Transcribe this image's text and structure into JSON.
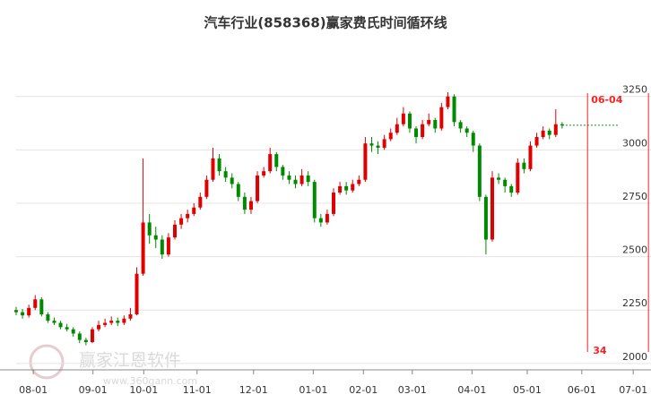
{
  "chart_data": {
    "type": "candlestick",
    "title": "汽车行业(858368)赢家费氏时间循环线",
    "watermark": "赢家江恩软件",
    "watermark_url": "www.360gann.com",
    "xlim": [
      0,
      100
    ],
    "ylim": [
      1970,
      3450
    ],
    "yticks": [
      2000,
      2250,
      2500,
      2750,
      3000,
      3250
    ],
    "xticks": [
      {
        "value": 2.7,
        "label": "08-01"
      },
      {
        "value": 12.1,
        "label": "09-01"
      },
      {
        "value": 20.1,
        "label": "10-01"
      },
      {
        "value": 28.5,
        "label": "11-01"
      },
      {
        "value": 37.4,
        "label": "12-01"
      },
      {
        "value": 46.8,
        "label": "01-01"
      },
      {
        "value": 54.7,
        "label": "02-01"
      },
      {
        "value": 62.4,
        "label": "03-01"
      },
      {
        "value": 71.8,
        "label": "04-01"
      },
      {
        "value": 80.5,
        "label": "05-01"
      },
      {
        "value": 89.1,
        "label": "06-01"
      },
      {
        "value": 97.2,
        "label": "07-01"
      }
    ],
    "grid": true,
    "up_color": "#e00000",
    "down_color": "#008a00",
    "cycle_color": "#ff2020",
    "cycle_lines": [
      90,
      99.6
    ],
    "cycle_date": "06-04",
    "cycle_count": "34",
    "x": [
      0,
      1,
      2,
      3,
      4,
      5,
      6,
      7,
      8,
      9,
      10,
      11,
      12,
      13,
      14,
      15,
      16,
      17,
      18,
      19,
      20,
      21,
      22,
      23,
      24,
      25,
      26,
      27,
      28,
      29,
      30,
      31,
      32,
      33,
      34,
      35,
      36,
      37,
      38,
      39,
      40,
      41,
      42,
      43,
      44,
      45,
      46,
      47,
      48,
      49,
      50,
      51,
      52,
      53,
      54,
      55,
      56,
      57,
      58,
      59,
      60,
      61,
      62,
      63,
      64,
      65,
      66,
      67,
      68,
      69,
      70,
      71,
      72,
      73,
      74,
      75,
      76,
      77,
      78,
      79,
      80,
      81,
      82,
      83,
      84,
      85,
      86
    ],
    "open": [
      2250,
      2240,
      2225,
      2260,
      2300,
      2230,
      2200,
      2190,
      2170,
      2160,
      2140,
      2110,
      2100,
      2160,
      2180,
      2190,
      2200,
      2190,
      2210,
      2230,
      2420,
      2660,
      2600,
      2580,
      2510,
      2590,
      2650,
      2680,
      2700,
      2730,
      2780,
      2860,
      2960,
      2900,
      2870,
      2840,
      2780,
      2720,
      2760,
      2880,
      2900,
      2980,
      2920,
      2880,
      2860,
      2840,
      2880,
      2850,
      2680,
      2660,
      2700,
      2800,
      2830,
      2810,
      2840,
      2860,
      3030,
      3020,
      3010,
      3050,
      3080,
      3120,
      3170,
      3100,
      3060,
      3120,
      3140,
      3100,
      3200,
      3250,
      3130,
      3100,
      3080,
      3020,
      2780,
      2580,
      2870,
      2860,
      2830,
      2800,
      2940,
      2910,
      3020,
      3060,
      3090,
      3070,
      3120
    ],
    "high": [
      2265,
      2255,
      2275,
      2320,
      2310,
      2240,
      2215,
      2200,
      2185,
      2170,
      2150,
      2120,
      2170,
      2200,
      2210,
      2220,
      2215,
      2225,
      2260,
      2450,
      2960,
      2700,
      2640,
      2600,
      2610,
      2670,
      2700,
      2720,
      2750,
      2800,
      2880,
      3010,
      2980,
      2920,
      2890,
      2850,
      2800,
      2780,
      2900,
      2920,
      3010,
      2990,
      2930,
      2900,
      2880,
      2910,
      2900,
      2860,
      2700,
      2720,
      2820,
      2850,
      2850,
      2860,
      2880,
      3060,
      3060,
      3040,
      3070,
      3100,
      3150,
      3200,
      3180,
      3110,
      3140,
      3170,
      3150,
      3220,
      3270,
      3260,
      3140,
      3110,
      3090,
      3030,
      2790,
      2900,
      2890,
      2870,
      2840,
      2960,
      2960,
      3040,
      3080,
      3110,
      3100,
      3190,
      3130
    ],
    "low": [
      2225,
      2210,
      2215,
      2250,
      2220,
      2190,
      2180,
      2160,
      2150,
      2125,
      2095,
      2085,
      2095,
      2150,
      2170,
      2180,
      2175,
      2180,
      2200,
      2225,
      2410,
      2560,
      2540,
      2490,
      2500,
      2580,
      2630,
      2660,
      2690,
      2720,
      2770,
      2850,
      2880,
      2850,
      2820,
      2760,
      2700,
      2700,
      2750,
      2870,
      2890,
      2900,
      2860,
      2840,
      2820,
      2830,
      2830,
      2660,
      2640,
      2650,
      2690,
      2790,
      2790,
      2800,
      2830,
      2850,
      2990,
      2980,
      3000,
      3040,
      3070,
      3110,
      3080,
      3030,
      3050,
      3110,
      3080,
      3090,
      3190,
      3110,
      3080,
      3060,
      2990,
      2760,
      2510,
      2570,
      2840,
      2800,
      2780,
      2790,
      2890,
      2900,
      3010,
      3050,
      3050,
      3060,
      3100
    ],
    "close": [
      2240,
      2225,
      2260,
      2300,
      2230,
      2200,
      2190,
      2170,
      2160,
      2140,
      2110,
      2100,
      2160,
      2180,
      2190,
      2200,
      2190,
      2210,
      2230,
      2420,
      2660,
      2600,
      2580,
      2510,
      2590,
      2650,
      2680,
      2700,
      2730,
      2780,
      2860,
      2960,
      2900,
      2870,
      2840,
      2780,
      2720,
      2760,
      2880,
      2900,
      2980,
      2920,
      2880,
      2860,
      2840,
      2880,
      2850,
      2680,
      2660,
      2700,
      2800,
      2830,
      2810,
      2840,
      2860,
      3030,
      3020,
      3010,
      3050,
      3080,
      3120,
      3170,
      3100,
      3060,
      3120,
      3140,
      3100,
      3200,
      3250,
      3130,
      3100,
      3080,
      3020,
      2780,
      2580,
      2870,
      2860,
      2830,
      2800,
      2940,
      2910,
      3020,
      3060,
      3090,
      3070,
      3120,
      3115
    ]
  }
}
